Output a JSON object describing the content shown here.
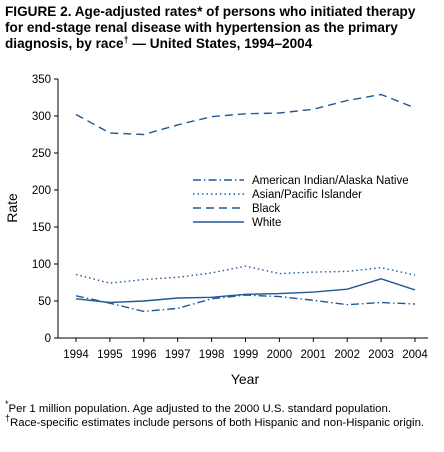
{
  "title": {
    "line1": "FIGURE 2. Age-adjusted rates* of persons who initiated therapy",
    "line2": "for end-stage renal disease with hypertension as the primary",
    "line3_pre": "diagnosis, by race",
    "dagger": "†",
    "line3_post": " — United States, 1994–2004"
  },
  "footnotes": [
    {
      "marker": "*",
      "text": "Per 1 million population. Age adjusted to the 2000 U.S. standard population."
    },
    {
      "marker": "†",
      "text": "Race-specific estimates include persons of both Hispanic and non-Hispanic origin."
    }
  ],
  "chart_data": {
    "type": "line",
    "xlabel": "Year",
    "ylabel": "Rate",
    "x": [
      1994,
      1995,
      1996,
      1997,
      1998,
      1999,
      2000,
      2001,
      2002,
      2003,
      2004
    ],
    "ylim": [
      0,
      350
    ],
    "yticks": [
      0,
      50,
      100,
      150,
      200,
      250,
      300,
      350
    ],
    "grid": false,
    "legend_position": "center-right",
    "color": "#1f5a96",
    "series": [
      {
        "name": "American Indian/Alaska Native",
        "dash": "dash-dot",
        "values": [
          57,
          47,
          36,
          40,
          53,
          58,
          56,
          51,
          45,
          48,
          46
        ]
      },
      {
        "name": "Asian/Pacific Islander",
        "dash": "dotted",
        "values": [
          86,
          74,
          79,
          82,
          88,
          97,
          87,
          89,
          90,
          95,
          85
        ]
      },
      {
        "name": "Black",
        "dash": "dashed",
        "values": [
          302,
          277,
          275,
          288,
          299,
          303,
          304,
          309,
          321,
          329,
          311
        ]
      },
      {
        "name": "White",
        "dash": "solid",
        "values": [
          53,
          48,
          50,
          54,
          55,
          59,
          60,
          62,
          66,
          80,
          65
        ]
      }
    ]
  }
}
